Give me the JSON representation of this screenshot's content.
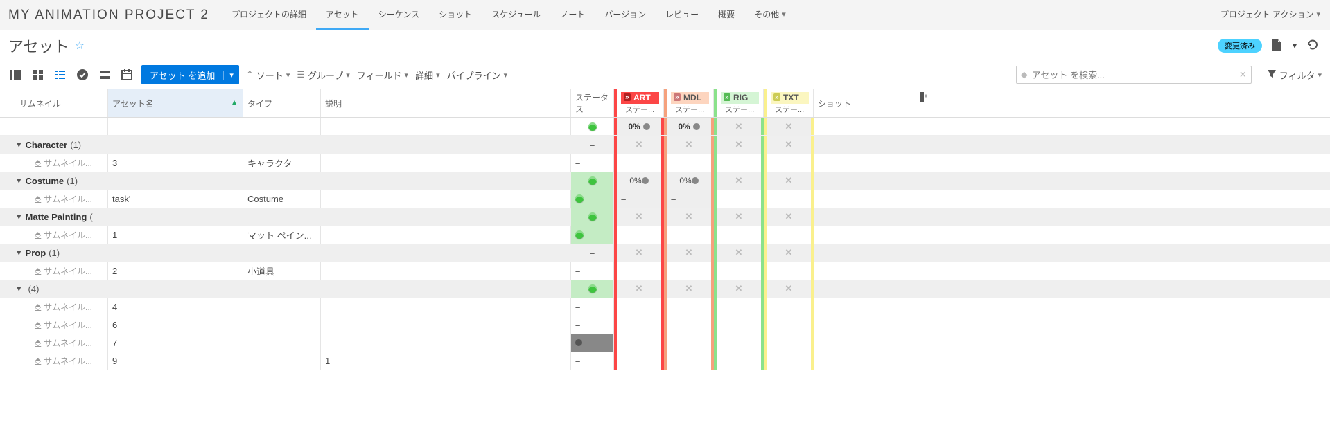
{
  "project_title": "MY ANIMATION PROJECT 2",
  "nav": {
    "tabs": [
      "プロジェクトの詳細",
      "アセット",
      "シーケンス",
      "ショット",
      "スケジュール",
      "ノート",
      "バージョン",
      "レビュー",
      "概要",
      "その他"
    ],
    "active_idx": 1,
    "right_action": "プロジェクト アクション"
  },
  "page": {
    "title": "アセット"
  },
  "titlebar": {
    "badge": "変更済み"
  },
  "toolbar": {
    "add_btn": "アセット を追加",
    "sort": "ソート",
    "group": "グループ",
    "fields": "フィールド",
    "detail": "詳細",
    "pipeline": "パイプライン",
    "search_ph": "アセット を検索...",
    "filter": "フィルタ"
  },
  "columns": {
    "thumb": "サムネイル",
    "name": "アセット名",
    "type": "タイプ",
    "desc": "説明",
    "status": "ステータス",
    "pipe_sub": "ステー...",
    "shot": "ショット"
  },
  "pipes": [
    {
      "code": "ART",
      "color": "#fc4646"
    },
    {
      "code": "MDL",
      "color": "#f5a17d"
    },
    {
      "code": "RIG",
      "color": "#8be28b"
    },
    {
      "code": "TXT",
      "color": "#faf08d"
    }
  ],
  "summary": {
    "status": "green",
    "art": "0%",
    "mdl": "0%",
    "rig": "x",
    "txt": "x"
  },
  "groups": [
    {
      "name": "Character",
      "count": "(1)",
      "status": "dash",
      "art": "x",
      "mdl": "x",
      "rig": "x",
      "txt": "x",
      "rows": [
        {
          "thumb": "サムネイル...",
          "name": "3",
          "type": "キャラクタ",
          "desc": "",
          "status": "dash",
          "art": "",
          "mdl": "",
          "rig": "",
          "txt": ""
        }
      ]
    },
    {
      "name": "Costume",
      "count": "(1)",
      "status": "green",
      "status_grn": true,
      "art": "0%",
      "mdl": "0%",
      "rig": "x",
      "txt": "x",
      "rows": [
        {
          "thumb": "サムネイル...",
          "name": "task'",
          "type": "Costume",
          "desc": "",
          "status": "green",
          "status_grn": true,
          "art": "dash",
          "mdl": "dash",
          "rig": "",
          "txt": ""
        }
      ]
    },
    {
      "name": "Matte Painting",
      "count": "(",
      "status": "green",
      "status_grn": true,
      "art": "x",
      "mdl": "x",
      "rig": "x",
      "txt": "x",
      "rows": [
        {
          "thumb": "サムネイル...",
          "name": "1",
          "type": "マット ペイン...",
          "desc": "",
          "status": "green",
          "status_grn": true,
          "art": "",
          "mdl": "",
          "rig": "",
          "txt": ""
        }
      ]
    },
    {
      "name": "Prop",
      "count": "(1)",
      "status": "dash",
      "art": "x",
      "mdl": "x",
      "rig": "x",
      "txt": "x",
      "rows": [
        {
          "thumb": "サムネイル...",
          "name": "2",
          "type": "小道具",
          "desc": "",
          "status": "dash",
          "art": "",
          "mdl": "",
          "rig": "",
          "txt": ""
        }
      ]
    },
    {
      "name": "",
      "count": "(4)",
      "status": "green",
      "status_grn": true,
      "art": "x",
      "mdl": "x",
      "rig": "x",
      "txt": "x",
      "rows": [
        {
          "thumb": "サムネイル...",
          "name": "4",
          "type": "",
          "desc": "",
          "status": "dash",
          "art": "",
          "mdl": "",
          "rig": "",
          "txt": ""
        },
        {
          "thumb": "サムネイル...",
          "name": "6",
          "type": "",
          "desc": "",
          "status": "dash",
          "art": "",
          "mdl": "",
          "rig": "",
          "txt": ""
        },
        {
          "thumb": "サムネイル...",
          "name": "7",
          "type": "",
          "desc": "",
          "status": "dot-grey",
          "art": "",
          "mdl": "",
          "rig": "",
          "txt": ""
        },
        {
          "thumb": "サムネイル...",
          "name": "9",
          "type": "",
          "desc": "1",
          "status": "dash",
          "art": "",
          "mdl": "",
          "rig": "",
          "txt": ""
        }
      ]
    }
  ]
}
